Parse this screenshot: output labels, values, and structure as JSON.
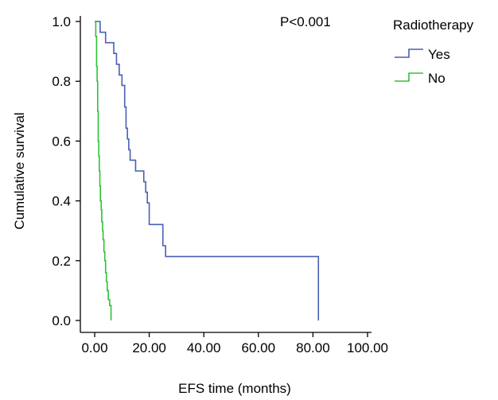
{
  "chart_data": {
    "type": "line",
    "subtype": "kaplan-meier step survival curve",
    "title": "",
    "xlabel": "EFS time (months)",
    "ylabel": "Cumulative survival",
    "annotation": "P<0.001",
    "xlim": [
      0,
      100
    ],
    "ylim": [
      0,
      1
    ],
    "x_ticks": [
      0,
      20,
      40,
      60,
      80,
      100
    ],
    "x_tick_labels": [
      "0.00",
      "20.00",
      "40.00",
      "60.00",
      "80.00",
      "100.00"
    ],
    "y_ticks": [
      0,
      0.2,
      0.4,
      0.6,
      0.8,
      1.0
    ],
    "y_tick_labels": [
      "0.0",
      "0.2",
      "0.4",
      "0.6",
      "0.8",
      "1.0"
    ],
    "grid": false,
    "legend": {
      "title": "Radiotherapy",
      "position": "right"
    },
    "series": [
      {
        "name": "Yes",
        "color": "#4a5fb4",
        "x": [
          0,
          2,
          4,
          7,
          8,
          9,
          10,
          11,
          11.5,
          12,
          12.5,
          13,
          15,
          18,
          18.7,
          19.3,
          20,
          25,
          26,
          82
        ],
        "y": [
          1.0,
          0.964,
          0.929,
          0.893,
          0.857,
          0.821,
          0.786,
          0.714,
          0.643,
          0.607,
          0.571,
          0.536,
          0.5,
          0.464,
          0.429,
          0.393,
          0.321,
          0.25,
          0.214,
          0.0
        ]
      },
      {
        "name": "No",
        "color": "#2ec23a",
        "x": [
          0,
          0.4,
          0.7,
          0.9,
          1.1,
          1.3,
          1.5,
          1.7,
          1.9,
          2.1,
          2.4,
          2.6,
          2.9,
          3.1,
          3.4,
          3.7,
          4.0,
          4.3,
          4.6,
          5.0,
          5.5,
          6.0
        ],
        "y": [
          1.0,
          0.95,
          0.85,
          0.8,
          0.7,
          0.6,
          0.55,
          0.5,
          0.45,
          0.4,
          0.37,
          0.33,
          0.3,
          0.27,
          0.23,
          0.2,
          0.16,
          0.13,
          0.1,
          0.07,
          0.05,
          0.0
        ]
      }
    ]
  }
}
